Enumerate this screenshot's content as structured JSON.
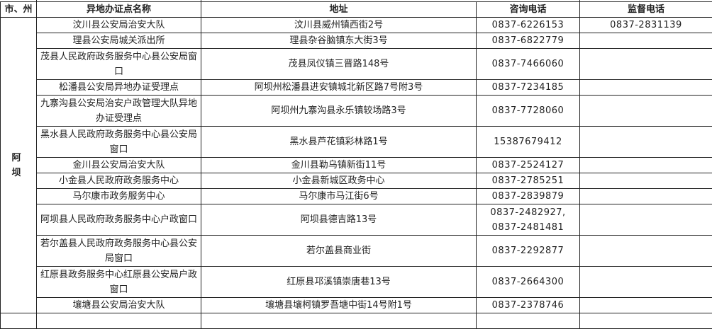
{
  "table": {
    "headers": [
      "市、州",
      "异地办证点名称",
      "地址",
      "咨询电话",
      "监督电话"
    ],
    "city": "阿 坝",
    "rows": [
      {
        "name": "汶川县公安局治安大队",
        "address": "汶川县威州镇西街2号",
        "phone": "0837-6226153",
        "supervise": "0837-2831139",
        "lines": 1
      },
      {
        "name": "理县公安局城关派出所",
        "address": "理县杂谷脑镇东大街3号",
        "phone": "0837-6822779",
        "supervise": "",
        "lines": 1
      },
      {
        "name": "茂县人民政府政务服务中心县公安局窗口",
        "address": "茂县凤仪镇三晋路148号",
        "phone": "0837-7466060",
        "supervise": "",
        "lines": 2
      },
      {
        "name": "松潘县公安局异地办证受理点",
        "address": "阿坝州松潘县进安镇城北新区路7号附3号",
        "phone": "0837-7234185",
        "supervise": "",
        "lines": 1
      },
      {
        "name": "九寨沟县公安局治安户政管理大队异地办证受理点",
        "address": "阿坝州九寨沟县永乐镇较场路3号",
        "phone": "0837-7728060",
        "supervise": "",
        "lines": 2
      },
      {
        "name": "黑水县人民政府政务服务中心县公安局窗口",
        "address": "黑水县芦花镇彩林路1号",
        "phone": "15387679412",
        "supervise": "",
        "lines": 2
      },
      {
        "name": "金川县公安局治安大队",
        "address": "金川县勒乌镇新街11号",
        "phone": "0837-2524127",
        "supervise": "",
        "lines": 1
      },
      {
        "name": "小金县人民政府政务服务中心",
        "address": "小金县新城区政务中心",
        "phone": "0837-2785251",
        "supervise": "",
        "lines": 1
      },
      {
        "name": "马尔康市政务服务中心",
        "address": "马尔康市马江街6号",
        "phone": "0837-2839879",
        "supervise": "",
        "lines": 1
      },
      {
        "name": "阿坝县人民政府政务服务中心户政窗口",
        "address": "阿坝县德吉路13号",
        "phone": "0837-2482927, 0837-2481481",
        "supervise": "",
        "lines": 2
      },
      {
        "name": "若尔盖县人民政府政务服务中心县公安局窗口",
        "address": "若尔盖县商业街",
        "phone": "0837-2292877",
        "supervise": "",
        "lines": 2
      },
      {
        "name": "红原县政务服务中心红原县公安局户政窗口",
        "address": "红原县邛溪镇崇唐巷13号",
        "phone": "0837-2664300",
        "supervise": "",
        "lines": 2
      },
      {
        "name": "壤塘县公安局治安大队",
        "address": "壤塘县壤柯镇罗吾塘中街14号附1号",
        "phone": "0837-2378746",
        "supervise": "",
        "lines": 1
      }
    ]
  }
}
